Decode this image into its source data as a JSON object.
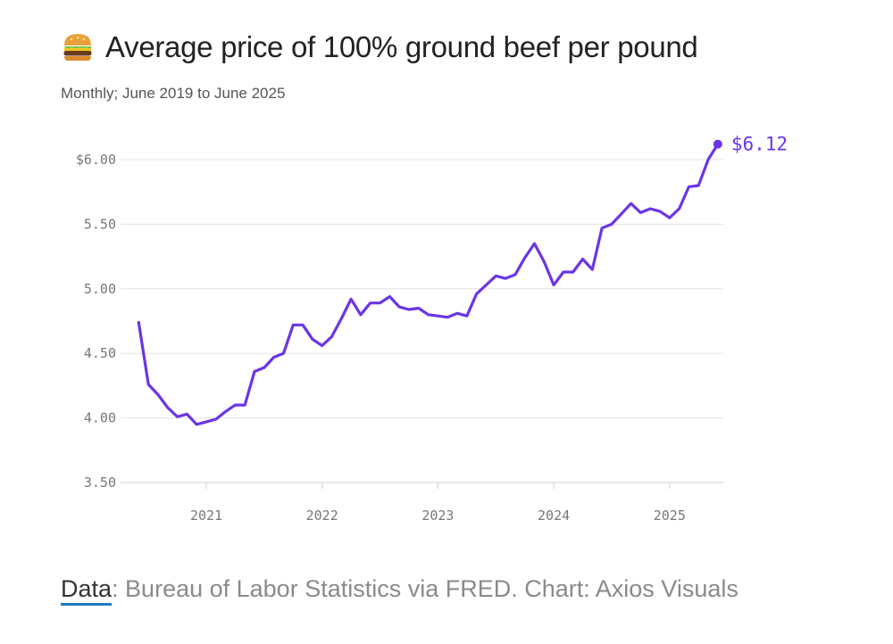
{
  "header": {
    "icon": "burger-icon",
    "title": "Average price of 100% ground beef per pound",
    "subtitle": "Monthly; June 2019 to June 2025"
  },
  "footer": {
    "source_link": "Data",
    "source_rest": ": Bureau of Labor Statistics via FRED. Chart: Axios Visuals"
  },
  "colors": {
    "line": "#6b35e6",
    "grid": "#e3e3e3",
    "tick": "#777777"
  },
  "chart_data": {
    "type": "line",
    "title": "Average price of 100% ground beef per pound",
    "subtitle": "Monthly; June 2019 to June 2025",
    "xlabel": "",
    "ylabel": "",
    "ylim": [
      3.5,
      6.0
    ],
    "grid": true,
    "yticks": [
      6.0,
      5.5,
      5.0,
      4.5,
      4.0,
      3.5
    ],
    "ytick_labels": [
      "$6.00",
      "5.50",
      "5.00",
      "4.50",
      "4.00",
      "3.50"
    ],
    "xticks": [
      "2021",
      "2022",
      "2023",
      "2024",
      "2025"
    ],
    "end_label": "$6.12",
    "series": [
      {
        "x": [
          "2020-06",
          "2020-07",
          "2020-08",
          "2020-09",
          "2020-10",
          "2020-11",
          "2020-12",
          "2021-01",
          "2021-02",
          "2021-03",
          "2021-04",
          "2021-05",
          "2021-06",
          "2021-07",
          "2021-08",
          "2021-09",
          "2021-10",
          "2021-11",
          "2021-12",
          "2022-01",
          "2022-02",
          "2022-03",
          "2022-04",
          "2022-05",
          "2022-06",
          "2022-07",
          "2022-08",
          "2022-09",
          "2022-10",
          "2022-11",
          "2022-12",
          "2023-01",
          "2023-02",
          "2023-03",
          "2023-04",
          "2023-05",
          "2023-06",
          "2023-07",
          "2023-08",
          "2023-09",
          "2023-10",
          "2023-11",
          "2023-12",
          "2024-01",
          "2024-02",
          "2024-03",
          "2024-04",
          "2024-05",
          "2024-06",
          "2024-07",
          "2024-08",
          "2024-09",
          "2024-10",
          "2024-11",
          "2024-12",
          "2025-01",
          "2025-02",
          "2025-03",
          "2025-04",
          "2025-05",
          "2025-06"
        ],
        "values": [
          4.74,
          4.26,
          4.18,
          4.08,
          4.01,
          4.03,
          3.95,
          3.97,
          3.99,
          4.05,
          4.1,
          4.1,
          4.36,
          4.39,
          4.47,
          4.5,
          4.72,
          4.72,
          4.61,
          4.56,
          4.63,
          4.77,
          4.92,
          4.8,
          4.89,
          4.89,
          4.94,
          4.86,
          4.84,
          4.85,
          4.8,
          4.79,
          4.78,
          4.81,
          4.79,
          4.96,
          5.03,
          5.1,
          5.08,
          5.11,
          5.24,
          5.35,
          5.21,
          5.03,
          5.13,
          5.13,
          5.23,
          5.15,
          5.47,
          5.5,
          5.58,
          5.66,
          5.59,
          5.62,
          5.6,
          5.55,
          5.62,
          5.79,
          5.8,
          6.0,
          6.12
        ]
      }
    ]
  }
}
